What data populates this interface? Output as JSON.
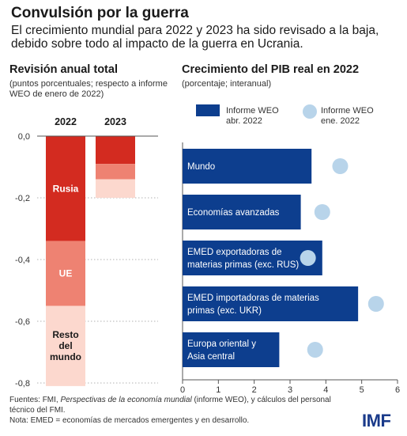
{
  "header": {
    "title": "Convulsión por la guerra",
    "subtitle": "El crecimiento mundial para 2022 y 2023 ha sido revisado a la baja, debido sobre todo al impacto de la guerra en Ucrania."
  },
  "left_panel": {
    "title": "Revisión anual total",
    "note": "(puntos porcentuales; respecto a informe WEO de enero de 2022)"
  },
  "right_panel": {
    "title": "Crecimiento del PIB real en 2022",
    "note": "(porcentaje; interanual)"
  },
  "footer": {
    "sources_prefix": "Fuentes: FMI, ",
    "sources_italic": "Perspectivas de la economía mundial",
    "sources_suffix": " (informe WEO), y cálculos del personal técnico del FMI.",
    "note": "Nota: EMED = economías de mercados emergentes y en desarrollo."
  },
  "logo": "IMF",
  "colors": {
    "russia": "#d32b20",
    "eu": "#ee8272",
    "rest": "#fcd8ce",
    "apr_bar": "#0d3e8e",
    "jan_dot": "#b8d4ea",
    "bar_text": "#ffffff",
    "axis": "#555555"
  },
  "chart_data": [
    {
      "type": "bar",
      "stacked": true,
      "title": "Revisión anual total",
      "subtitle": "(puntos porcentuales; respecto a informe WEO de enero de 2022)",
      "categories": [
        "2022",
        "2023"
      ],
      "series": [
        {
          "name": "Rusia",
          "values": [
            -0.34,
            -0.09
          ]
        },
        {
          "name": "UE",
          "values": [
            -0.21,
            -0.05
          ]
        },
        {
          "name": "Resto del mundo",
          "values": [
            -0.26,
            -0.06
          ]
        }
      ],
      "series_labels_2022": [
        "Rusia",
        "UE",
        "Resto del mundo"
      ],
      "ylim": [
        -0.8,
        0.0
      ],
      "yticks": [
        "0,0",
        "-0,2",
        "-0,4",
        "-0,6",
        "-0,8"
      ],
      "ytick_values": [
        0.0,
        -0.2,
        -0.4,
        -0.6,
        -0.8
      ]
    },
    {
      "type": "bar",
      "orientation": "horizontal",
      "title": "Crecimiento del PIB real en 2022",
      "subtitle": "(porcentaje; interanual)",
      "categories": [
        "Mundo",
        "Economías avanzadas",
        "EMED exportadoras de materias primas (exc. RUS)",
        "EMED importadoras de materias primas (exc. UKR)",
        "Europa oriental y Asia central"
      ],
      "category_lines": [
        [
          "Mundo"
        ],
        [
          "Economías avanzadas"
        ],
        [
          "EMED exportadoras de",
          "materias primas (exc. RUS)"
        ],
        [
          "EMED importadoras de materias",
          "primas (exc. UKR)"
        ],
        [
          "Europa oriental y",
          "Asia central"
        ]
      ],
      "series": [
        {
          "name": "Informe WEO abr. 2022",
          "legend_lines": [
            "Informe WEO",
            "abr. 2022"
          ],
          "marker": "bar",
          "values": [
            3.6,
            3.3,
            3.9,
            4.9,
            2.7
          ]
        },
        {
          "name": "Informe WEO ene. 2022",
          "legend_lines": [
            "Informe WEO",
            "ene. 2022"
          ],
          "marker": "dot",
          "values": [
            4.4,
            3.9,
            3.5,
            5.4,
            3.7
          ]
        }
      ],
      "xlim": [
        0,
        6
      ],
      "xticks": [
        "0",
        "1",
        "2",
        "3",
        "4",
        "5",
        "6"
      ],
      "xtick_values": [
        0,
        1,
        2,
        3,
        4,
        5,
        6
      ]
    }
  ]
}
